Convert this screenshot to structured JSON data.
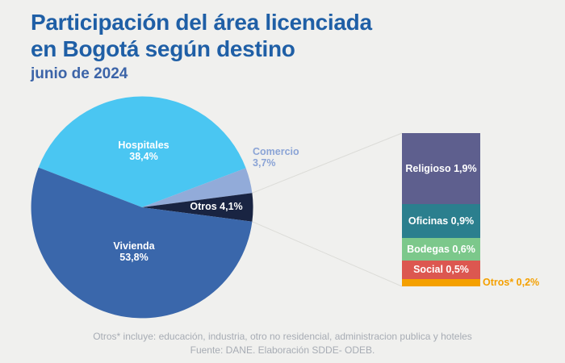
{
  "header": {
    "title_line1": "Participación del área licenciada",
    "title_line2": "en Bogotá según destino",
    "subtitle": "junio de 2024"
  },
  "chart_data": {
    "type": "pie",
    "title": "Participación del área licenciada en Bogotá según destino",
    "subtitle": "junio de 2024",
    "unit": "percent",
    "start_angle_deg": -158.94,
    "background_color": "#f0f0ee",
    "callout_line_color": "#dcdcd8",
    "slices": [
      {
        "label": "Hospitales",
        "value": 38.4,
        "display": "38,4%",
        "color": "#4ac6f2",
        "label_color": "#ffffff"
      },
      {
        "label": "Comercio",
        "value": 3.7,
        "display": "3,7%",
        "color": "#92abd9",
        "label_color": "#8ba4d6",
        "label_outside": true
      },
      {
        "label": "Otros",
        "value": 4.1,
        "display": "4,1%",
        "color": "#192442",
        "label_color": "#ffffff"
      },
      {
        "label": "Vivienda",
        "value": 53.8,
        "display": "53,8%",
        "color": "#3a67ab",
        "label_color": "#ffffff"
      }
    ],
    "breakdown": {
      "of": "Otros",
      "total": 4.1,
      "position": "right",
      "segments": [
        {
          "label": "Religioso",
          "value": 1.9,
          "display": "Religioso 1,9%",
          "color": "#5e5f8e"
        },
        {
          "label": "Oficinas",
          "value": 0.9,
          "display": "Oficinas 0,9%",
          "color": "#2b7f8e"
        },
        {
          "label": "Bodegas",
          "value": 0.6,
          "display": "Bodegas 0,6%",
          "color": "#7cc88b"
        },
        {
          "label": "Social",
          "value": 0.5,
          "display": "Social 0,5%",
          "color": "#dc5750"
        },
        {
          "label": "Otros*",
          "value": 0.2,
          "display": "Otros* 0,2%",
          "color": "#f4a000",
          "label_outside": true,
          "label_color": "#f4a000"
        }
      ]
    }
  },
  "footer": {
    "note": "Otros* incluye: educación, industria, otro no residencial, administracion publica y hoteles",
    "source": "Fuente: DANE. Elaboración SDDE- ODEB."
  }
}
